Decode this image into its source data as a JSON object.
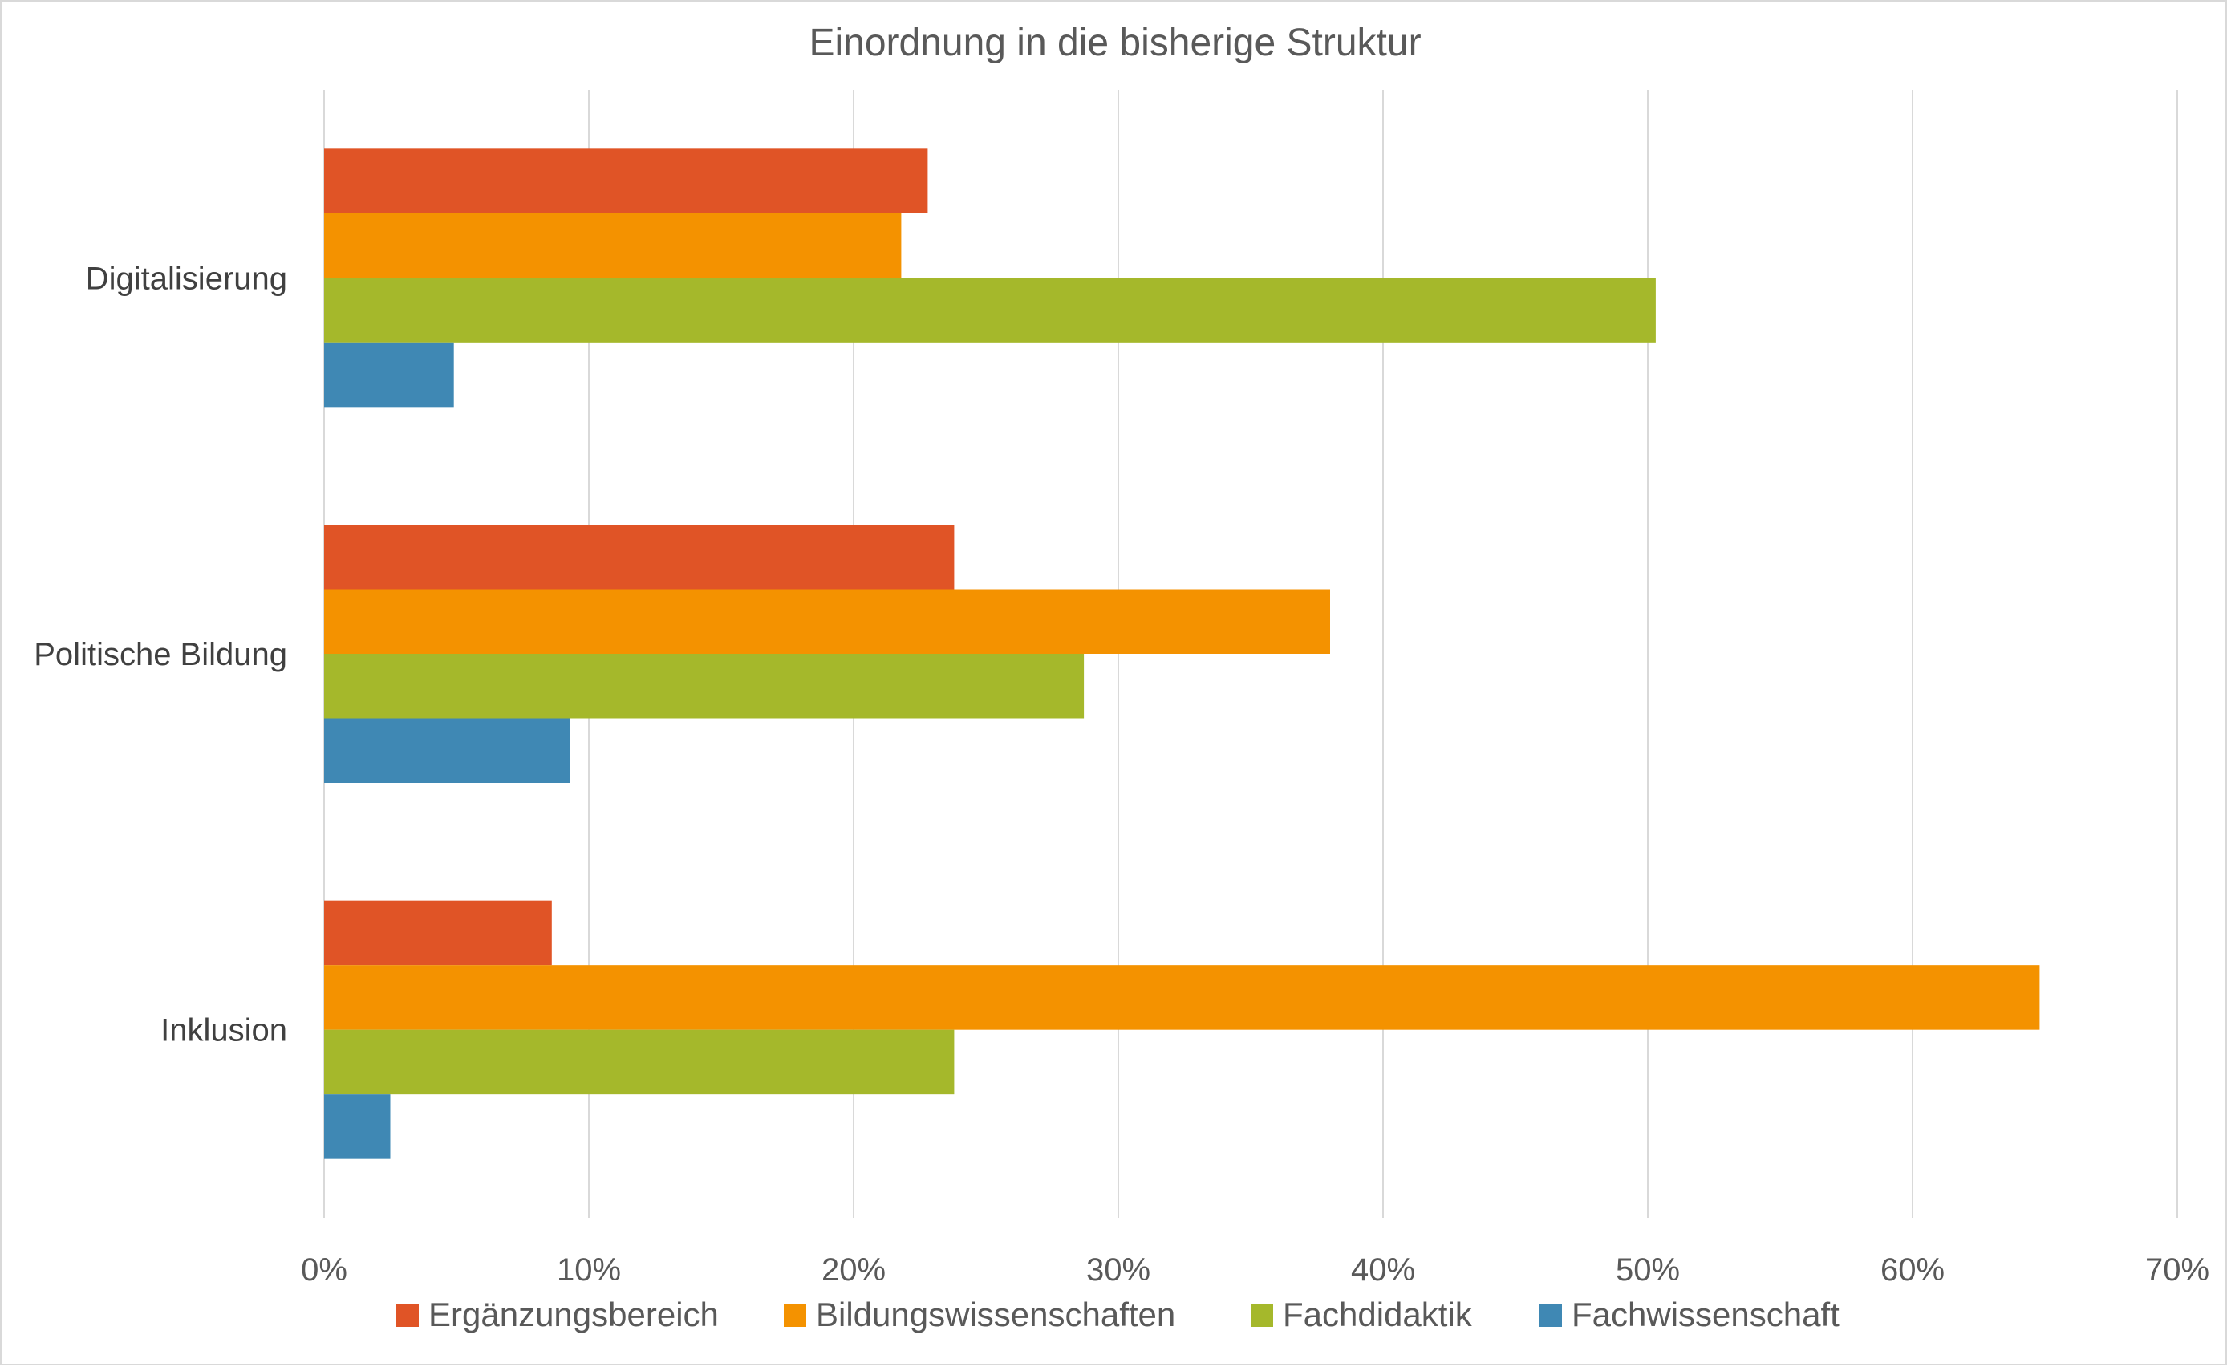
{
  "chart_data": {
    "type": "bar",
    "orientation": "horizontal",
    "title": "Einordnung in die bisherige Struktur",
    "xlabel": "",
    "ylabel": "",
    "categories": [
      "Digitalisierung",
      "Politische Bildung",
      "Inklusion"
    ],
    "series": [
      {
        "name": "Ergänzungsbereich",
        "color": "#E05426",
        "values": [
          22.8,
          23.8,
          8.6
        ]
      },
      {
        "name": "Bildungswissenschaften",
        "color": "#F49200",
        "values": [
          21.8,
          38.0,
          64.8
        ]
      },
      {
        "name": "Fachdidaktik",
        "color": "#A5B82B",
        "values": [
          50.3,
          28.7,
          23.8
        ]
      },
      {
        "name": "Fachwissenschaft",
        "color": "#3F88B4",
        "values": [
          4.9,
          9.3,
          2.5
        ]
      }
    ],
    "xlim": [
      0,
      70
    ],
    "xticks": [
      "0%",
      "10%",
      "20%",
      "30%",
      "40%",
      "50%",
      "60%",
      "70%"
    ],
    "grid": "vertical",
    "legend": "bottom",
    "gridline_color": "#D9D9D9"
  }
}
